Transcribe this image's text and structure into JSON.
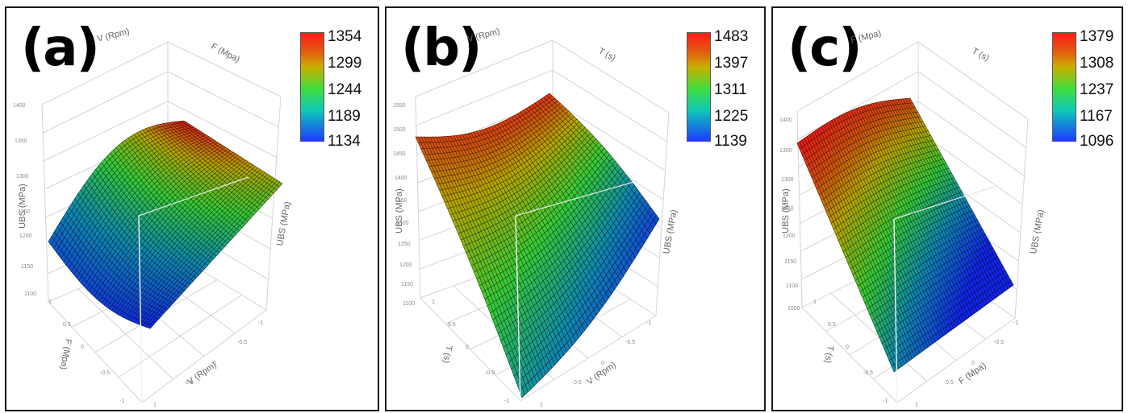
{
  "chart_data": [
    {
      "type": "surface",
      "panel_label": "(a)",
      "x_axis_label": "V (Rpm)",
      "y_axis_label": "F (Mpa)",
      "z_axis_label": "UBS (MPa)",
      "x_range": [
        -1,
        1
      ],
      "y_range": [
        -1,
        1
      ],
      "z_ticks": [
        "1400",
        "1350",
        "1300",
        "1250",
        "1200",
        "1150",
        "1100"
      ],
      "colorbar_ticks": [
        "1354",
        "1299",
        "1244",
        "1189",
        "1134"
      ]
    },
    {
      "type": "surface",
      "panel_label": "(b)",
      "x_axis_label": "V (Rpm)",
      "y_axis_label": "T (s)",
      "z_axis_label": "UBS (MPa)",
      "x_range": [
        -1,
        1
      ],
      "y_range": [
        -1,
        1
      ],
      "z_ticks": [
        "1550",
        "1500",
        "1450",
        "1400",
        "1350",
        "1300",
        "1250",
        "1200",
        "1150",
        "1100"
      ],
      "colorbar_ticks": [
        "1483",
        "1397",
        "1311",
        "1225",
        "1139"
      ]
    },
    {
      "type": "surface",
      "panel_label": "(c)",
      "x_axis_label": "F (Mpa)",
      "y_axis_label": "T (s)",
      "z_axis_label": "UBS (MPa)",
      "x_range": [
        -1,
        1
      ],
      "y_range": [
        -1,
        1
      ],
      "z_ticks": [
        "1400",
        "1350",
        "1300",
        "1250",
        "1200",
        "1150",
        "1100",
        "1050"
      ],
      "colorbar_ticks": [
        "1379",
        "1308",
        "1237",
        "1167",
        "1096"
      ]
    }
  ],
  "axis_ticks": [
    "-1",
    "-0.5",
    "0",
    "0.5",
    "1"
  ],
  "colors": {
    "high": "#ff1a1a",
    "mid": "#3fdc3f",
    "low": "#1a3cff",
    "border": "#1a1a1a"
  }
}
